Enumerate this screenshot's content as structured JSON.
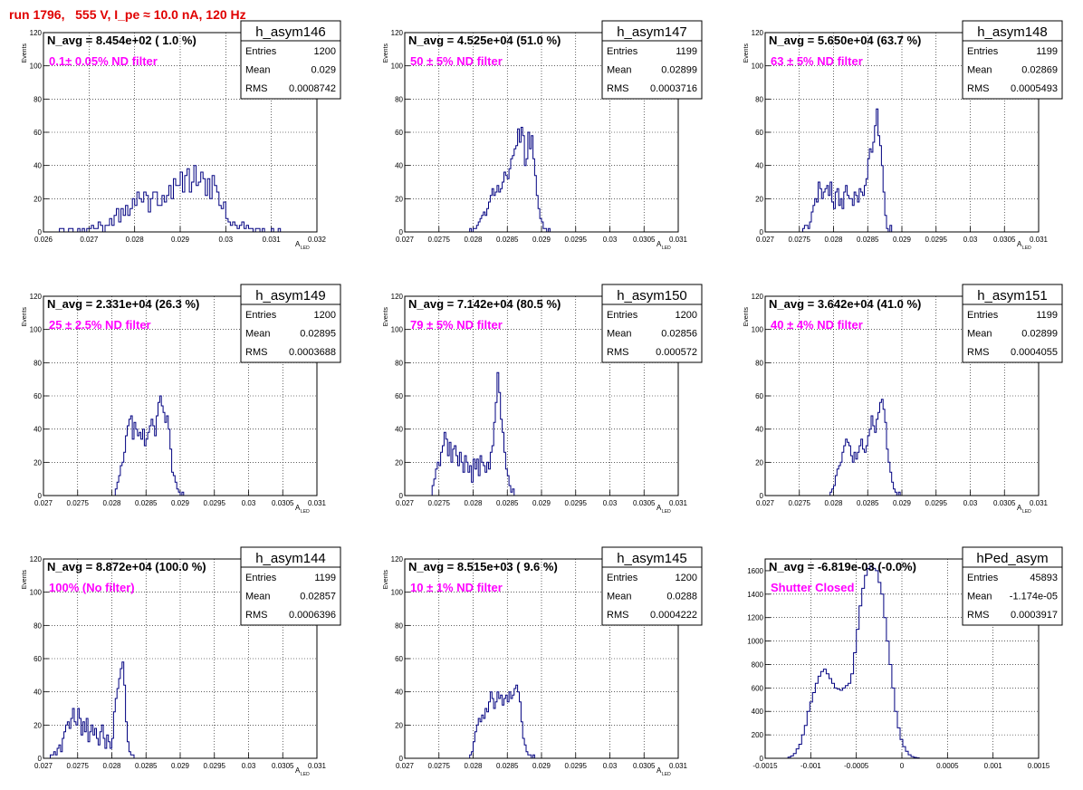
{
  "header": {
    "run_title": "run 1796,   555 V, I_pe ≈ 10.0 nA, 120 Hz"
  },
  "colors": {
    "histogram_line": "#000080",
    "annotation": "#ff00ff",
    "title_red": "#e00000",
    "grid": "#000000"
  },
  "chart_data": [
    {
      "type": "bar",
      "name": "h_asym146",
      "nav_label": "N_avg = 8.454e+02 ( 1.0 %)",
      "annotation": "0.1± 0.05% ND filter",
      "stats": {
        "entries_label": "Entries",
        "entries": "1200",
        "mean_label": "Mean",
        "mean": "0.029",
        "rms_label": "RMS",
        "rms": "0.0008742"
      },
      "ylabel": "Events",
      "xlabel": "A",
      "xlabel_sub": "LED",
      "xlim": [
        0.026,
        0.032
      ],
      "ylim": [
        0,
        120
      ],
      "xticks": [
        0.026,
        0.027,
        0.028,
        0.029,
        0.03,
        0.031,
        0.032
      ],
      "xtick_labels": [
        "0.026",
        "0.027",
        "0.028",
        "0.029",
        "0.03",
        "0.031",
        "0.032"
      ],
      "yticks": [
        0,
        20,
        40,
        60,
        80,
        100,
        120
      ],
      "ytick_labels": [
        "0",
        "20",
        "40",
        "60",
        "80",
        "100",
        "120"
      ],
      "bin_start": 0.0262,
      "bin_width": 5e-05,
      "values": [
        0,
        0,
        0,
        2,
        2,
        0,
        0,
        2,
        2,
        0,
        0,
        2,
        0,
        2,
        0,
        2,
        2,
        4,
        2,
        2,
        6,
        4,
        0,
        4,
        4,
        8,
        4,
        10,
        14,
        6,
        14,
        10,
        16,
        10,
        14,
        20,
        16,
        24,
        20,
        18,
        24,
        22,
        12,
        20,
        24,
        24,
        16,
        16,
        22,
        18,
        22,
        28,
        20,
        32,
        28,
        28,
        36,
        24,
        34,
        38,
        24,
        30,
        40,
        28,
        30,
        36,
        32,
        22,
        32,
        20,
        34,
        28,
        24,
        16,
        14,
        18,
        8,
        6,
        4,
        6,
        4,
        2,
        4,
        6,
        2,
        4,
        2,
        2,
        0,
        2,
        2,
        0,
        2,
        0,
        0,
        0,
        2,
        0,
        0,
        2
      ]
    },
    {
      "type": "bar",
      "name": "h_asym147",
      "nav_label": "N_avg = 4.525e+04 (51.0 %)",
      "annotation": "50 ± 5% ND filter",
      "stats": {
        "entries_label": "Entries",
        "entries": "1199",
        "mean_label": "Mean",
        "mean": "0.02899",
        "rms_label": "RMS",
        "rms": "0.0003716"
      },
      "ylabel": "Events",
      "xlabel": "A",
      "xlabel_sub": "LED",
      "xlim": [
        0.027,
        0.031
      ],
      "ylim": [
        0,
        120
      ],
      "xticks": [
        0.027,
        0.0275,
        0.028,
        0.0285,
        0.029,
        0.0295,
        0.03,
        0.0305,
        0.031
      ],
      "xtick_labels": [
        "0.027",
        "0.0275",
        "0.028",
        "0.0285",
        "0.029",
        "0.0295",
        "0.03",
        "0.0305",
        "0.031"
      ],
      "yticks": [
        0,
        20,
        40,
        60,
        80,
        100,
        120
      ],
      "ytick_labels": [
        "0",
        "20",
        "40",
        "60",
        "80",
        "100",
        "120"
      ],
      "bin_start": 0.02795,
      "bin_width": 2.5e-05,
      "values": [
        2,
        0,
        2,
        2,
        4,
        6,
        8,
        10,
        12,
        10,
        14,
        18,
        22,
        26,
        22,
        24,
        28,
        24,
        26,
        30,
        36,
        34,
        32,
        38,
        44,
        46,
        50,
        52,
        62,
        54,
        63,
        58,
        40,
        44,
        60,
        50,
        58,
        44,
        34,
        22,
        14,
        8,
        6,
        2,
        2,
        0,
        2
      ]
    },
    {
      "type": "bar",
      "name": "h_asym148",
      "nav_label": "N_avg = 5.650e+04 (63.7 %)",
      "annotation": "63 ± 5% ND filter",
      "stats": {
        "entries_label": "Entries",
        "entries": "1199",
        "mean_label": "Mean",
        "mean": "0.02869",
        "rms_label": "RMS",
        "rms": "0.0005493"
      },
      "ylabel": "Events",
      "xlabel": "A",
      "xlabel_sub": "LED",
      "xlim": [
        0.027,
        0.031
      ],
      "ylim": [
        0,
        120
      ],
      "xticks": [
        0.027,
        0.0275,
        0.028,
        0.0285,
        0.029,
        0.0295,
        0.03,
        0.0305,
        0.031
      ],
      "xtick_labels": [
        "0.027",
        "0.0275",
        "0.028",
        "0.0285",
        "0.029",
        "0.0295",
        "0.03",
        "0.0305",
        "0.031"
      ],
      "yticks": [
        0,
        20,
        40,
        60,
        80,
        100,
        120
      ],
      "ytick_labels": [
        "0",
        "20",
        "40",
        "60",
        "80",
        "100",
        "120"
      ],
      "bin_start": 0.02755,
      "bin_width": 2.5e-05,
      "values": [
        2,
        4,
        4,
        2,
        6,
        12,
        16,
        20,
        18,
        30,
        26,
        20,
        24,
        26,
        28,
        22,
        30,
        18,
        14,
        24,
        26,
        16,
        20,
        14,
        24,
        28,
        22,
        20,
        20,
        16,
        24,
        22,
        18,
        26,
        24,
        22,
        28,
        32,
        44,
        50,
        48,
        54,
        64,
        74,
        58,
        52,
        40,
        24,
        10,
        2,
        0,
        4
      ]
    },
    {
      "type": "bar",
      "name": "h_asym149",
      "nav_label": "N_avg = 2.331e+04 (26.3 %)",
      "annotation": "25 ± 2.5% ND filter",
      "stats": {
        "entries_label": "Entries",
        "entries": "1200",
        "mean_label": "Mean",
        "mean": "0.02895",
        "rms_label": "RMS",
        "rms": "0.0003688"
      },
      "ylabel": "Events",
      "xlabel": "A",
      "xlabel_sub": "LED",
      "xlim": [
        0.027,
        0.031
      ],
      "ylim": [
        0,
        120
      ],
      "xticks": [
        0.027,
        0.0275,
        0.028,
        0.0285,
        0.029,
        0.0295,
        0.03,
        0.0305,
        0.031
      ],
      "xtick_labels": [
        "0.027",
        "0.0275",
        "0.028",
        "0.0285",
        "0.029",
        "0.0295",
        "0.03",
        "0.0305",
        "0.031"
      ],
      "yticks": [
        0,
        20,
        40,
        60,
        80,
        100,
        120
      ],
      "ytick_labels": [
        "0",
        "20",
        "40",
        "60",
        "80",
        "100",
        "120"
      ],
      "bin_start": 0.02805,
      "bin_width": 2.5e-05,
      "values": [
        4,
        8,
        12,
        18,
        20,
        26,
        36,
        42,
        46,
        48,
        34,
        44,
        40,
        36,
        38,
        34,
        40,
        30,
        34,
        38,
        42,
        46,
        42,
        36,
        48,
        56,
        60,
        54,
        50,
        44,
        48,
        40,
        28,
        14,
        12,
        8,
        4,
        2,
        0,
        2
      ]
    },
    {
      "type": "bar",
      "name": "h_asym150",
      "nav_label": "N_avg = 7.142e+04 (80.5 %)",
      "annotation": "79 ± 5% ND filter",
      "stats": {
        "entries_label": "Entries",
        "entries": "1200",
        "mean_label": "Mean",
        "mean": "0.02856",
        "rms_label": "RMS",
        "rms": "0.000572"
      },
      "ylabel": "Events",
      "xlabel": "A",
      "xlabel_sub": "LED",
      "xlim": [
        0.027,
        0.031
      ],
      "ylim": [
        0,
        120
      ],
      "xticks": [
        0.027,
        0.0275,
        0.028,
        0.0285,
        0.029,
        0.0295,
        0.03,
        0.0305,
        0.031
      ],
      "xtick_labels": [
        "0.027",
        "0.0275",
        "0.028",
        "0.0285",
        "0.029",
        "0.0295",
        "0.03",
        "0.0305",
        "0.031"
      ],
      "yticks": [
        0,
        20,
        40,
        60,
        80,
        100,
        120
      ],
      "ytick_labels": [
        "0",
        "20",
        "40",
        "60",
        "80",
        "100",
        "120"
      ],
      "bin_start": 0.0274,
      "bin_width": 2.5e-05,
      "values": [
        6,
        10,
        16,
        20,
        18,
        26,
        30,
        38,
        34,
        24,
        32,
        20,
        28,
        30,
        24,
        18,
        26,
        20,
        14,
        24,
        20,
        14,
        18,
        8,
        22,
        16,
        22,
        12,
        24,
        20,
        18,
        14,
        20,
        16,
        26,
        30,
        44,
        56,
        74,
        62,
        46,
        38,
        26,
        16,
        12,
        6,
        2,
        4
      ]
    },
    {
      "type": "bar",
      "name": "h_asym151",
      "nav_label": "N_avg = 3.642e+04 (41.0 %)",
      "annotation": "40 ± 4% ND filter",
      "stats": {
        "entries_label": "Entries",
        "entries": "1199",
        "mean_label": "Mean",
        "mean": "0.02899",
        "rms_label": "RMS",
        "rms": "0.0004055"
      },
      "ylabel": "Events",
      "xlabel": "A",
      "xlabel_sub": "LED",
      "xlim": [
        0.027,
        0.031
      ],
      "ylim": [
        0,
        120
      ],
      "xticks": [
        0.027,
        0.0275,
        0.028,
        0.0285,
        0.029,
        0.0295,
        0.03,
        0.0305,
        0.031
      ],
      "xtick_labels": [
        "0.027",
        "0.0275",
        "0.028",
        "0.0285",
        "0.029",
        "0.0295",
        "0.03",
        "0.0305",
        "0.031"
      ],
      "yticks": [
        0,
        20,
        40,
        60,
        80,
        100,
        120
      ],
      "ytick_labels": [
        "0",
        "20",
        "40",
        "60",
        "80",
        "100",
        "120"
      ],
      "bin_start": 0.02795,
      "bin_width": 2.5e-05,
      "values": [
        2,
        4,
        6,
        12,
        16,
        18,
        20,
        26,
        30,
        34,
        32,
        30,
        24,
        20,
        26,
        22,
        26,
        30,
        34,
        28,
        26,
        30,
        36,
        40,
        48,
        42,
        38,
        46,
        50,
        56,
        58,
        52,
        44,
        28,
        20,
        14,
        8,
        4,
        2,
        0,
        2
      ]
    },
    {
      "type": "bar",
      "name": "h_asym144",
      "nav_label": "N_avg = 8.872e+04 (100.0 %)",
      "annotation": "100% (No filter)",
      "stats": {
        "entries_label": "Entries",
        "entries": "1199",
        "mean_label": "Mean",
        "mean": "0.02857",
        "rms_label": "RMS",
        "rms": "0.0006396"
      },
      "ylabel": "Events",
      "xlabel": "A",
      "xlabel_sub": "LED",
      "xlim": [
        0.027,
        0.031
      ],
      "ylim": [
        0,
        120
      ],
      "xticks": [
        0.027,
        0.0275,
        0.028,
        0.0285,
        0.029,
        0.0295,
        0.03,
        0.0305,
        0.031
      ],
      "xtick_labels": [
        "0.027",
        "0.0275",
        "0.028",
        "0.0285",
        "0.029",
        "0.0295",
        "0.03",
        "0.0305",
        "0.031"
      ],
      "yticks": [
        0,
        20,
        40,
        60,
        80,
        100,
        120
      ],
      "ytick_labels": [
        "0",
        "20",
        "40",
        "60",
        "80",
        "100",
        "120"
      ],
      "bin_start": 0.0271,
      "bin_width": 2.5e-05,
      "values": [
        2,
        2,
        4,
        2,
        6,
        8,
        4,
        12,
        16,
        20,
        22,
        18,
        24,
        30,
        22,
        20,
        30,
        24,
        14,
        22,
        16,
        24,
        10,
        16,
        20,
        14,
        18,
        12,
        8,
        16,
        20,
        12,
        6,
        14,
        10,
        6,
        12,
        28,
        36,
        42,
        48,
        54,
        58,
        44,
        22,
        10,
        4,
        2,
        2
      ]
    },
    {
      "type": "bar",
      "name": "h_asym145",
      "nav_label": "N_avg = 8.515e+03 ( 9.6 %)",
      "annotation": "10 ± 1% ND filter",
      "stats": {
        "entries_label": "Entries",
        "entries": "1200",
        "mean_label": "Mean",
        "mean": "0.0288",
        "rms_label": "RMS",
        "rms": "0.0004222"
      },
      "ylabel": "Events",
      "xlabel": "A",
      "xlabel_sub": "LED",
      "xlim": [
        0.027,
        0.031
      ],
      "ylim": [
        0,
        120
      ],
      "xticks": [
        0.027,
        0.0275,
        0.028,
        0.0285,
        0.029,
        0.0295,
        0.03,
        0.0305,
        0.031
      ],
      "xtick_labels": [
        "0.027",
        "0.0275",
        "0.028",
        "0.0285",
        "0.029",
        "0.0295",
        "0.03",
        "0.0305",
        "0.031"
      ],
      "yticks": [
        0,
        20,
        40,
        60,
        80,
        100,
        120
      ],
      "ytick_labels": [
        "0",
        "20",
        "40",
        "60",
        "80",
        "100",
        "120"
      ],
      "bin_start": 0.02795,
      "bin_width": 2.5e-05,
      "values": [
        2,
        4,
        10,
        16,
        20,
        24,
        22,
        26,
        24,
        30,
        28,
        34,
        40,
        36,
        30,
        34,
        40,
        36,
        38,
        32,
        36,
        38,
        34,
        40,
        36,
        38,
        42,
        44,
        40,
        34,
        22,
        12,
        8,
        4,
        2,
        2,
        0,
        2
      ]
    },
    {
      "type": "bar",
      "name": "hPed_asym",
      "nav_label": "N_avg = -6.819e-03 (-0.0%)",
      "annotation": "Shutter Closed",
      "stats": {
        "entries_label": "Entries",
        "entries": "45893",
        "mean_label": "Mean",
        "mean": "-1.174e-05",
        "rms_label": "RMS",
        "rms": "0.0003917"
      },
      "ylabel": "",
      "xlabel": "",
      "xlabel_sub": "",
      "xlim": [
        -0.0015,
        0.0015
      ],
      "ylim": [
        0,
        1700
      ],
      "xticks": [
        -0.0015,
        -0.001,
        -0.0005,
        0,
        0.0005,
        0.001,
        0.0015
      ],
      "xtick_labels": [
        "-0.0015",
        "-0.001",
        "-0.0005",
        "0",
        "0.0005",
        "0.001",
        "0.0015"
      ],
      "yticks": [
        0,
        200,
        400,
        600,
        800,
        1000,
        1200,
        1400,
        1600
      ],
      "ytick_labels": [
        "0",
        "200",
        "400",
        "600",
        "800",
        "1000",
        "1200",
        "1400",
        "1600"
      ],
      "bin_start": -0.00125,
      "bin_width": 3e-05,
      "values": [
        10,
        20,
        40,
        80,
        120,
        200,
        280,
        400,
        480,
        560,
        640,
        700,
        740,
        760,
        720,
        680,
        640,
        600,
        590,
        580,
        600,
        620,
        640,
        720,
        900,
        1100,
        1300,
        1450,
        1560,
        1620,
        1640,
        1620,
        1600,
        1500,
        1400,
        1200,
        1000,
        800,
        600,
        400,
        260,
        160,
        100,
        60,
        30,
        15,
        8,
        4
      ]
    }
  ]
}
